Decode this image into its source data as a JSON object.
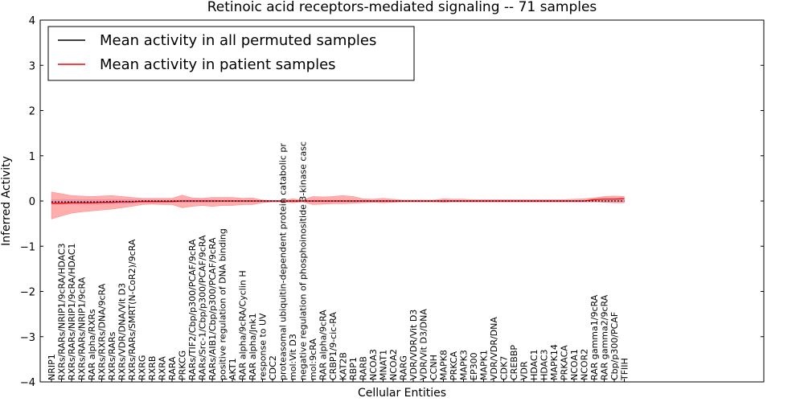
{
  "chart_data": {
    "type": "line",
    "title": "Retinoic acid receptors-mediated signaling -- 71 samples",
    "xlabel": "Cellular Entities",
    "ylabel": "Inferred Activity",
    "ylim": [
      -4,
      4
    ],
    "yticks": [
      -4,
      -3,
      -2,
      -1,
      0,
      1,
      2,
      3,
      4
    ],
    "grid": false,
    "legend_position": "top-left",
    "categories": [
      "NRIP1",
      "RXRs/RARs/NRIP1/9cRA/HDAC3",
      "RXRs/RARs/NRIP1/9cRA/HDAC1",
      "RXRs/RARs/NRIP1/9cRA",
      "RAR alpha/RXRs",
      "RXRs/RXRs/DNA/9cRA",
      "RXRs/RARs",
      "RXRs/VDR/DNA/Vit D3",
      "RXRs/RARs/SMRT(N-CoR2)/9cRA",
      "RXRG",
      "RXRB",
      "RXRA",
      "RARA",
      "PRKCG",
      "RARs/TIF2/Cbp/p300/PCAF/9cRA",
      "RARs/Src-1/Cbp/p300/PCAF/9cRA",
      "RARs/AIB1/Cbp/p300/PCAF/9cRA",
      "positive regulation of DNA binding",
      "AKT1",
      "RAR alpha/9cRA/Cyclin H",
      "RAR alpha/Jnk1",
      "response to UV",
      "CDC2",
      "proteasomal ubiquitin-dependent protein catabolic pr",
      "mol:Vit D3",
      "negative regulation of phosphoinositide 3-kinase casc",
      "mol:9cRA",
      "RAR alpha/9cRA",
      "CRBP1/9-cic-RA",
      "KAT2B",
      "RBP1",
      "RARB",
      "NCOA3",
      "MNAT1",
      "NCOA2",
      "RARG",
      "VDR/VDR/Vit D3",
      "VDR/Vit D3/DNA",
      "CCNH",
      "MAPK8",
      "PRKCA",
      "MAPK3",
      "EP300",
      "MAPK1",
      "VDR/VDR/DNA",
      "CDK7",
      "CREBBP",
      "VDR",
      "HDAC1",
      "HDAC3",
      "MAPK14",
      "PRKACA",
      "NCOA1",
      "NCOR2",
      "RAR gamma1/9cRA",
      "RAR gamma2/9cRA",
      "Cbp/p300/PCAF",
      "TFIIH"
    ],
    "series": [
      {
        "name": "Mean activity in all permuted samples",
        "color": "#000000",
        "style": "dotted",
        "values": [
          -0.02,
          -0.02,
          -0.02,
          -0.02,
          -0.02,
          -0.02,
          -0.01,
          -0.01,
          -0.01,
          0,
          0,
          0,
          0,
          0,
          0,
          0,
          0,
          0,
          0,
          0,
          0,
          0,
          0,
          0,
          0,
          0,
          0,
          0,
          0,
          0,
          0,
          0,
          0,
          0,
          0,
          0,
          0,
          0,
          0,
          0,
          0,
          0,
          0,
          0,
          0,
          0,
          0,
          0,
          0,
          0,
          0,
          0,
          0,
          0,
          0,
          0,
          0,
          0
        ],
        "band_upper": [
          0.03,
          0.03,
          0.03,
          0.03,
          0.03,
          0.03,
          0.03,
          0.03,
          0.03,
          0.02,
          0.02,
          0.02,
          0.02,
          0.02,
          0.02,
          0.02,
          0.02,
          0.01,
          0.01,
          0.01,
          0.01,
          0.01,
          0.01,
          0.01,
          0.01,
          0.01,
          0.01,
          0.01,
          0.01,
          0.01,
          0.01,
          0.01,
          0.01,
          0.01,
          0.01,
          0.01,
          0.01,
          0.01,
          0.01,
          0.01,
          0.01,
          0.01,
          0.01,
          0.01,
          0.01,
          0.01,
          0.01,
          0.01,
          0.01,
          0.01,
          0.01,
          0.01,
          0.01,
          0.01,
          0.01,
          0.01,
          0.01,
          0.01
        ],
        "band_lower": [
          -0.07,
          -0.07,
          -0.07,
          -0.07,
          -0.07,
          -0.07,
          -0.06,
          -0.06,
          -0.05,
          -0.03,
          -0.03,
          -0.03,
          -0.03,
          -0.03,
          -0.03,
          -0.03,
          -0.03,
          -0.02,
          -0.02,
          -0.02,
          -0.02,
          -0.02,
          -0.02,
          -0.02,
          -0.02,
          -0.02,
          -0.02,
          -0.02,
          -0.02,
          -0.02,
          -0.02,
          -0.02,
          -0.02,
          -0.02,
          -0.02,
          -0.02,
          -0.02,
          -0.02,
          -0.02,
          -0.02,
          -0.02,
          -0.02,
          -0.02,
          -0.02,
          -0.02,
          -0.02,
          -0.02,
          -0.02,
          -0.02,
          -0.02,
          -0.02,
          -0.02,
          -0.02,
          -0.02,
          -0.02,
          -0.02,
          -0.02,
          -0.02
        ],
        "band_color": "#9999ff"
      },
      {
        "name": "Mean activity in patient samples",
        "color": "#ff0000",
        "style": "solid",
        "values": [
          -0.05,
          -0.05,
          -0.04,
          -0.04,
          -0.04,
          -0.03,
          -0.03,
          -0.02,
          -0.02,
          -0.01,
          -0.01,
          -0.01,
          -0.01,
          0,
          0,
          0,
          0,
          0,
          0,
          0,
          0,
          0,
          0,
          0,
          0,
          0,
          0,
          0,
          0,
          0,
          0,
          0,
          0,
          0,
          0,
          0,
          0,
          0,
          0,
          0,
          0,
          0,
          0,
          0,
          0,
          0,
          0,
          0,
          0,
          0,
          0,
          0,
          0,
          0,
          0.03,
          0.04,
          0.04,
          0.05
        ],
        "band_upper": [
          0.2,
          0.16,
          0.12,
          0.11,
          0.1,
          0.11,
          0.12,
          0.1,
          0.08,
          0.06,
          0.06,
          0.06,
          0.06,
          0.13,
          0.07,
          0.06,
          0.08,
          0.08,
          0.08,
          0.06,
          0.07,
          0.02,
          0.01,
          0.01,
          0.05,
          0.02,
          0.1,
          0.09,
          0.1,
          0.12,
          0.1,
          0.05,
          0.04,
          0.06,
          0.04,
          0.02,
          0.02,
          0.02,
          0.02,
          0.05,
          0.04,
          0.04,
          0.03,
          0.03,
          0.03,
          0.03,
          0.03,
          0.03,
          0.03,
          0.03,
          0.03,
          0.03,
          0.04,
          0.05,
          0.07,
          0.1,
          0.11,
          0.1
        ],
        "band_lower": [
          -0.4,
          -0.33,
          -0.27,
          -0.24,
          -0.22,
          -0.2,
          -0.18,
          -0.15,
          -0.12,
          -0.08,
          -0.07,
          -0.08,
          -0.08,
          -0.15,
          -0.12,
          -0.1,
          -0.12,
          -0.1,
          -0.1,
          -0.08,
          -0.08,
          -0.04,
          -0.02,
          -0.02,
          -0.04,
          -0.02,
          -0.08,
          -0.07,
          -0.06,
          -0.06,
          -0.05,
          -0.04,
          -0.03,
          -0.04,
          -0.03,
          -0.02,
          -0.02,
          -0.02,
          -0.02,
          -0.03,
          -0.02,
          -0.02,
          -0.02,
          -0.02,
          -0.02,
          -0.02,
          -0.02,
          -0.02,
          -0.02,
          -0.02,
          -0.02,
          -0.02,
          -0.02,
          -0.02,
          -0.02,
          -0.03,
          -0.04,
          -0.04
        ],
        "band_color": "#ff7777"
      }
    ]
  }
}
